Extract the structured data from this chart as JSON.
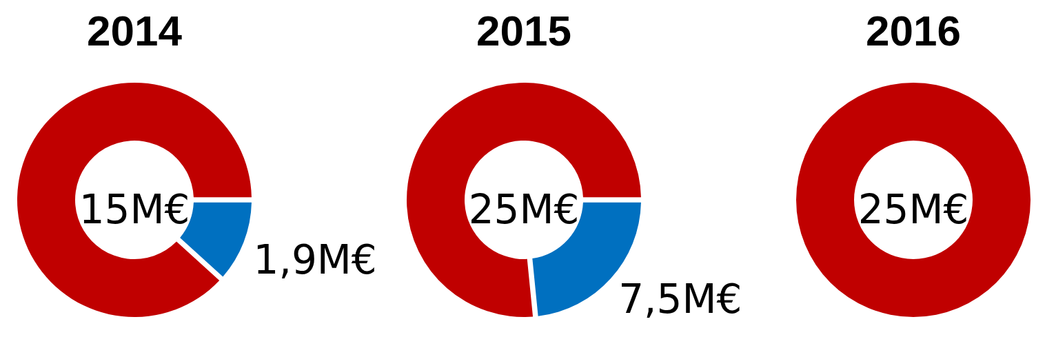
{
  "chart_data": [
    {
      "type": "donut",
      "title": "2014",
      "categories": [
        null,
        null
      ],
      "values": [
        15,
        1.9
      ],
      "value_labels": [
        "15M€",
        "1,9M€"
      ],
      "colors": [
        "#c00000",
        "#0070c0"
      ]
    },
    {
      "type": "donut",
      "title": "2015",
      "categories": [
        null,
        null
      ],
      "values": [
        25,
        7.5
      ],
      "value_labels": [
        "25M€",
        "7,5M€"
      ],
      "colors": [
        "#c00000",
        "#0070c0"
      ]
    },
    {
      "type": "donut",
      "title": "2016",
      "categories": [
        null
      ],
      "values": [
        25
      ],
      "value_labels": [
        "25M€"
      ],
      "colors": [
        "#c00000"
      ]
    }
  ]
}
